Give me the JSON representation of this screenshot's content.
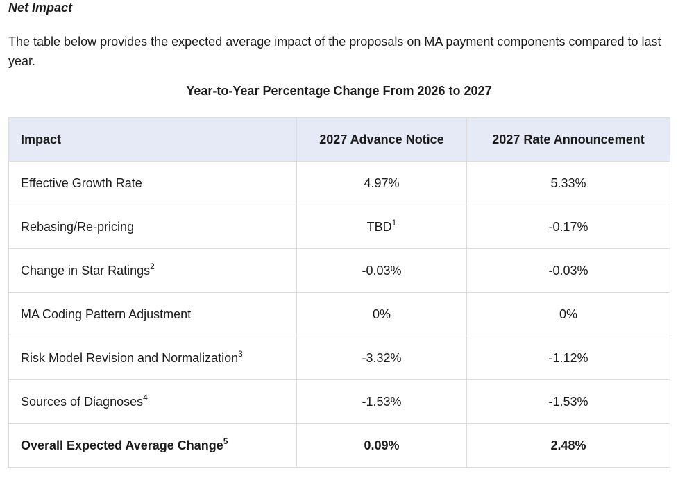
{
  "section": {
    "title": "Net Impact",
    "intro": "The table below provides the expected average impact of the proposals on MA payment components compared to last year."
  },
  "table": {
    "caption": "Year-to-Year Percentage Change From 2026 to 2027",
    "columns": [
      "Impact",
      "2027 Advance Notice",
      "2027 Rate Announcement"
    ],
    "header_bg": "#e6e9f6",
    "rows": [
      {
        "impact": "Effective Growth Rate",
        "note": "",
        "advance_notice": "4.97%",
        "an_note": "",
        "rate_announcement": "5.33%"
      },
      {
        "impact": "Rebasing/Re-pricing",
        "note": "",
        "advance_notice": "TBD",
        "an_note": "1",
        "rate_announcement": "-0.17%"
      },
      {
        "impact": "Change in Star Ratings",
        "note": "2",
        "advance_notice": "-0.03%",
        "an_note": "",
        "rate_announcement": "-0.03%"
      },
      {
        "impact": "MA Coding Pattern Adjustment",
        "note": "",
        "advance_notice": "0%",
        "an_note": "",
        "rate_announcement": "0%"
      },
      {
        "impact": "Risk Model Revision and Normalization",
        "note": "3",
        "advance_notice": "-3.32%",
        "an_note": "",
        "rate_announcement": "-1.12%"
      },
      {
        "impact": "Sources of Diagnoses",
        "note": "4",
        "advance_notice": "-1.53%",
        "an_note": "",
        "rate_announcement": "-1.53%"
      },
      {
        "impact": "Overall Expected Average Change",
        "note": "5",
        "advance_notice": "0.09%",
        "an_note": "",
        "rate_announcement": "2.48%",
        "bold": true
      }
    ]
  }
}
